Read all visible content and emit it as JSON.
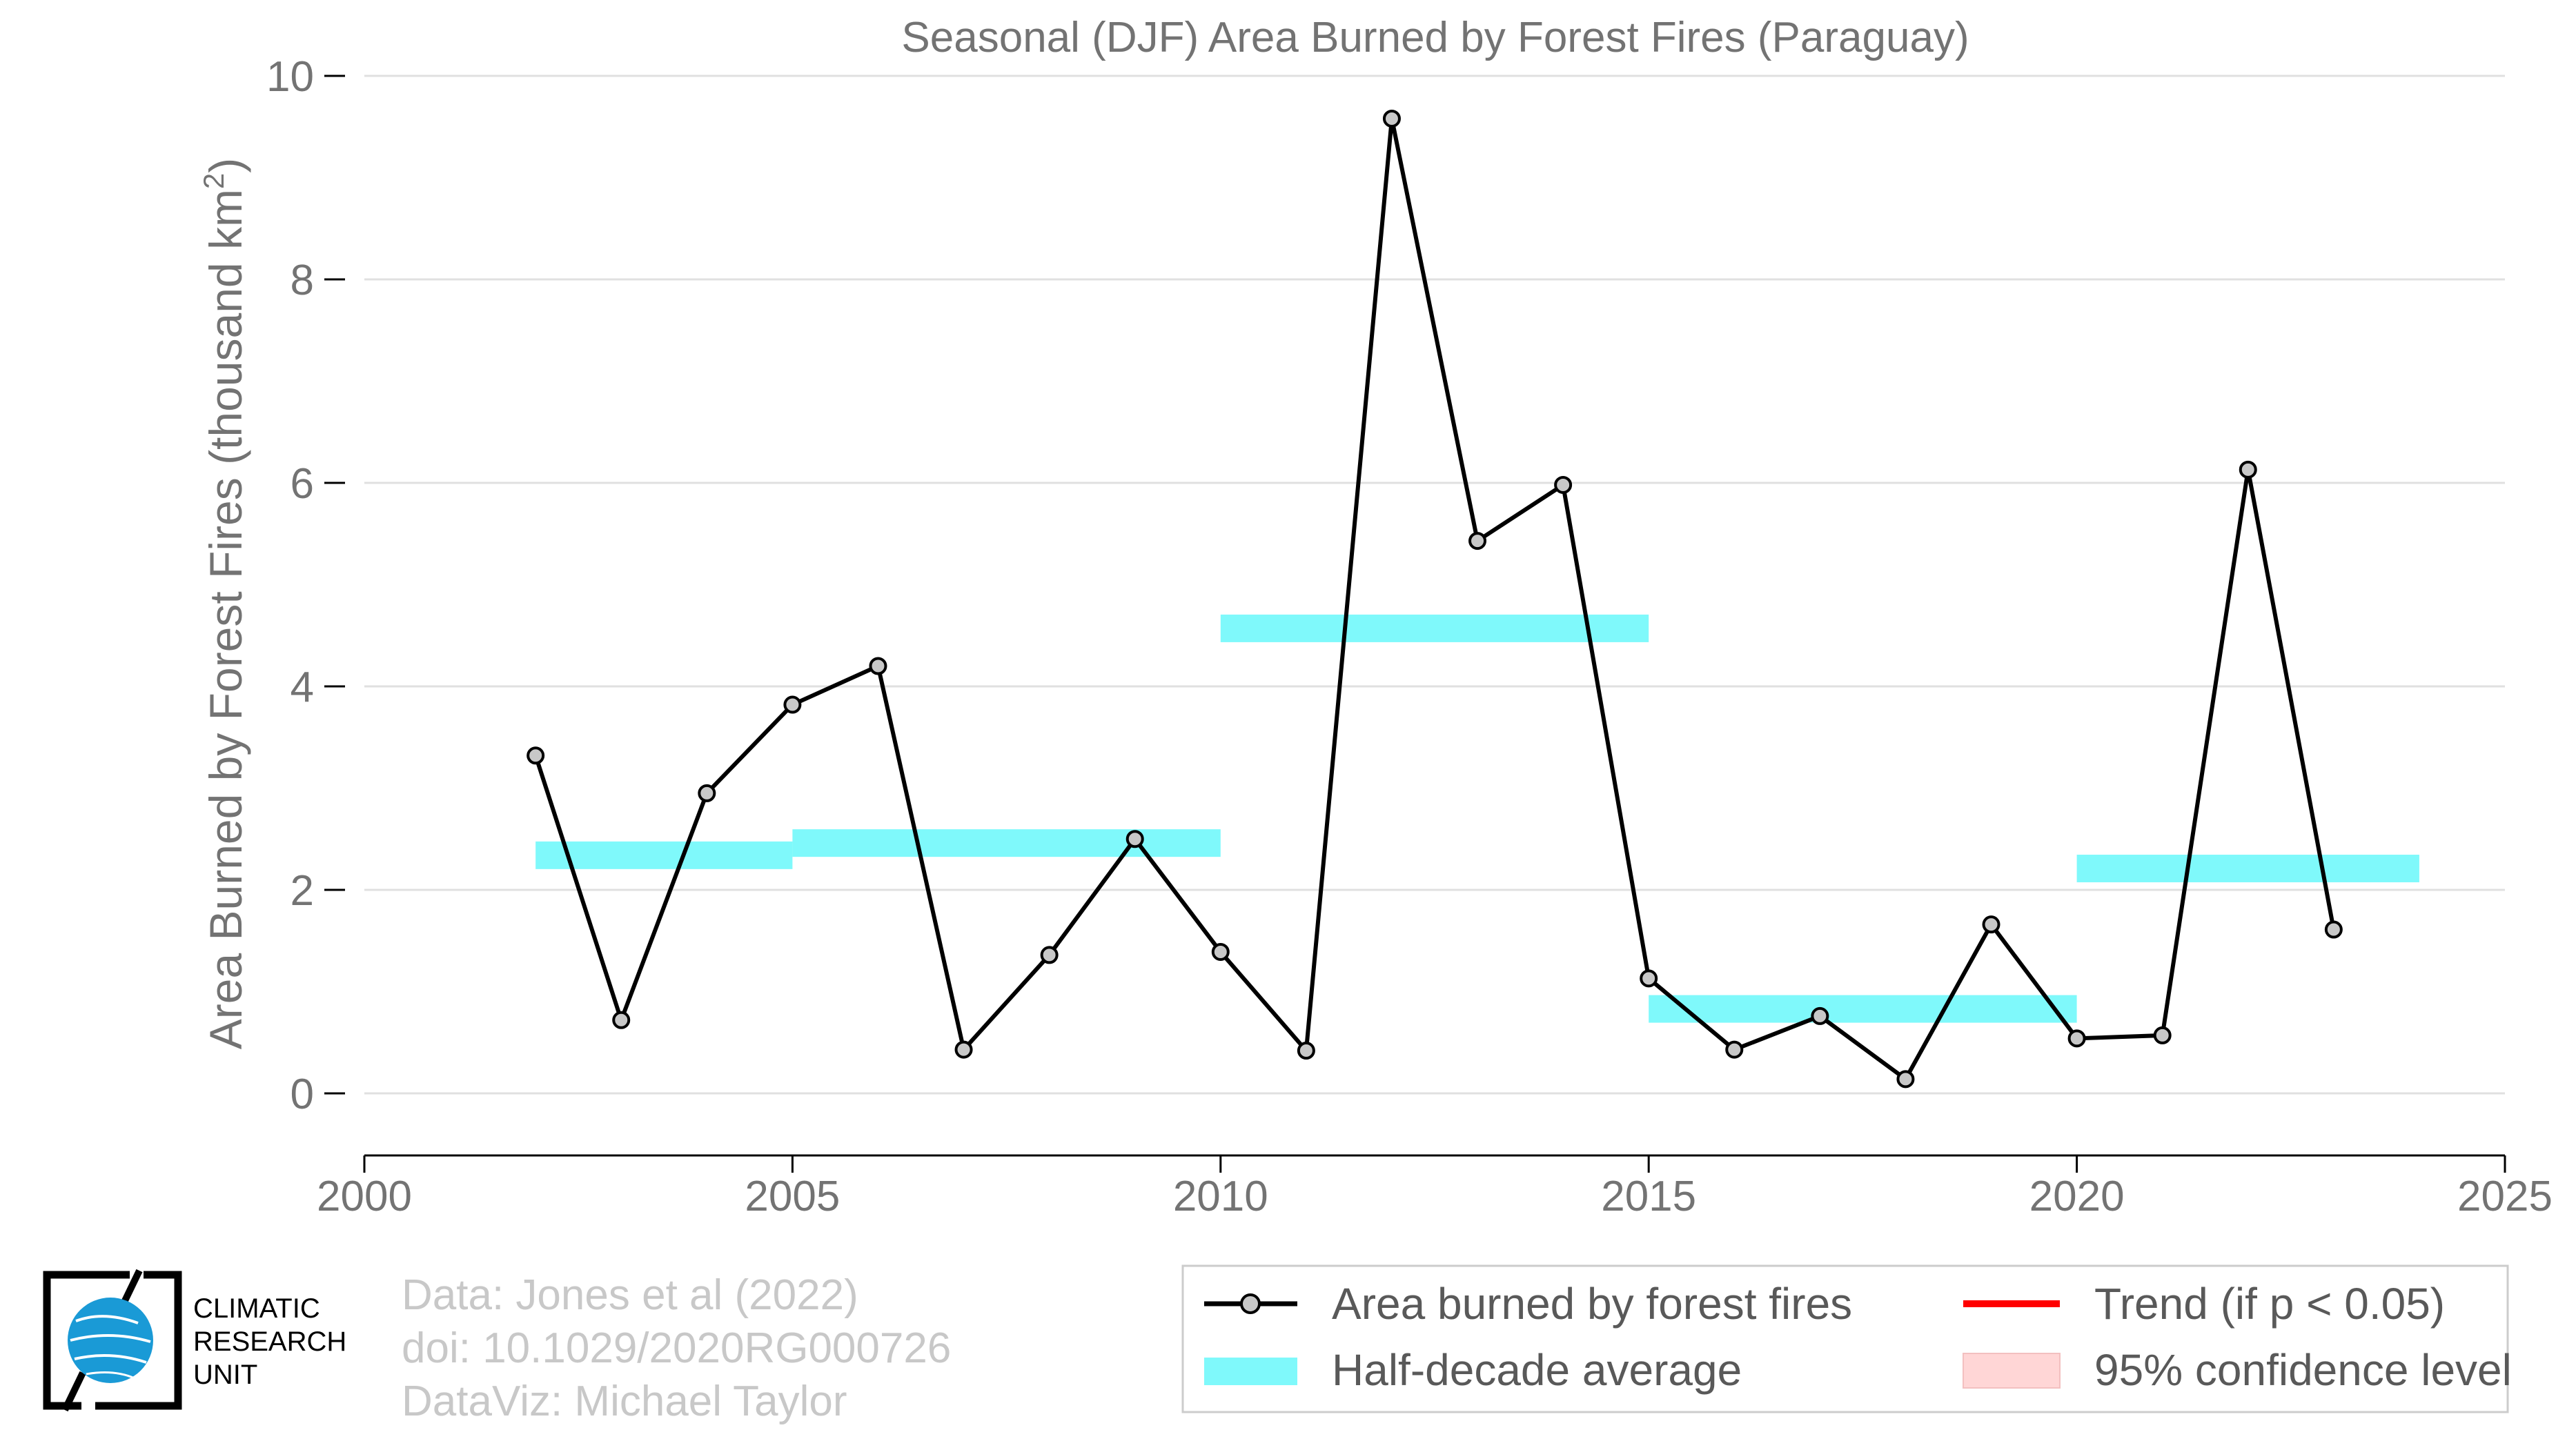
{
  "chart_data": {
    "type": "line",
    "title": "Seasonal (DJF) Area Burned by Forest Fires (Paraguay)",
    "ylabel_main": "Area Burned by Forest Fires (thousand km",
    "ylabel_sup": "2",
    "ylabel_end": ")",
    "xlabel": "",
    "xlim": [
      2000,
      2025
    ],
    "ylim": [
      0,
      10
    ],
    "x_ticks": [
      "2000",
      "2005",
      "2010",
      "2015",
      "2020",
      "2025"
    ],
    "y_ticks": [
      "0",
      "2",
      "4",
      "6",
      "8",
      "10"
    ],
    "grid": true,
    "series": [
      {
        "name": "Area burned by forest fires",
        "color": "#000000",
        "marker_color": "#c8c8c8",
        "x": [
          2002,
          2003,
          2004,
          2005,
          2006,
          2007,
          2008,
          2009,
          2010,
          2011,
          2012,
          2013,
          2014,
          2015,
          2016,
          2017,
          2018,
          2019,
          2020,
          2021,
          2022,
          2023
        ],
        "y": [
          3.32,
          0.72,
          2.95,
          3.82,
          4.2,
          0.43,
          1.36,
          2.5,
          1.39,
          0.42,
          9.58,
          5.43,
          5.98,
          1.13,
          0.43,
          0.76,
          0.14,
          1.66,
          0.54,
          0.57,
          6.13,
          1.61
        ]
      },
      {
        "name": "Half-decade average",
        "color": "#7ff9fb",
        "segments": [
          {
            "x0": 2002,
            "x1": 2005,
            "y": 2.34
          },
          {
            "x0": 2005,
            "x1": 2010,
            "y": 2.46
          },
          {
            "x0": 2010,
            "x1": 2015,
            "y": 4.57
          },
          {
            "x0": 2015,
            "x1": 2020,
            "y": 0.83
          },
          {
            "x0": 2020,
            "x1": 2024,
            "y": 2.21
          }
        ]
      }
    ],
    "legend": {
      "placement": "bottom-right",
      "items": [
        {
          "label": "Area burned by forest fires",
          "kind": "line-marker",
          "color": "#000000"
        },
        {
          "label": "Trend (if p < 0.05)",
          "kind": "line",
          "color": "#ff0000"
        },
        {
          "label": "Half-decade average",
          "kind": "band",
          "color": "#7ff9fb"
        },
        {
          "label": "95% confidence level",
          "kind": "patch",
          "color": "#ffd6d6"
        }
      ]
    }
  },
  "credits": {
    "line1": "Data: Jones et al (2022)",
    "line2": "doi: 10.1029/2020RG000726",
    "line3": "DataViz: Michael Taylor"
  },
  "logo": {
    "line1": "CLIMATIC",
    "line2": "RESEARCH",
    "line3": "UNIT",
    "icon": "globe-logo-icon",
    "color": "#1a9ad6"
  }
}
